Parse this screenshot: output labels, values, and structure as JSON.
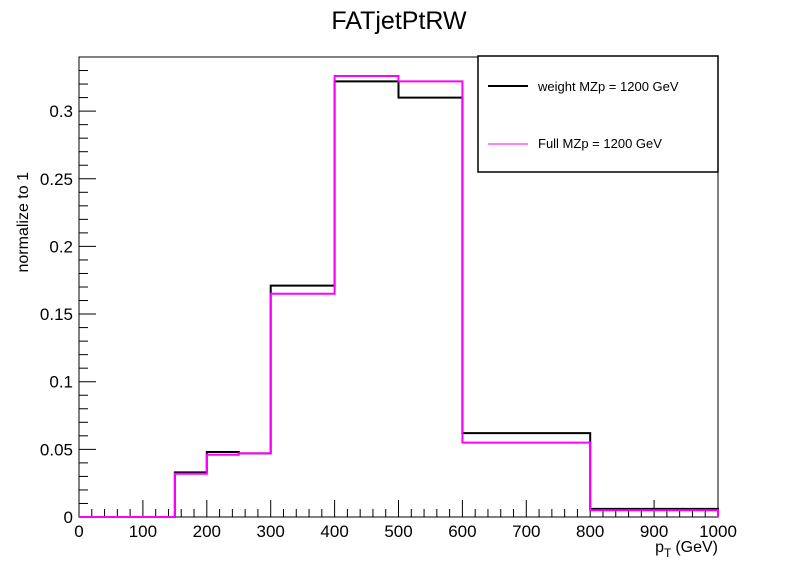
{
  "chart_data": {
    "type": "line",
    "title": "FATjetPtRW",
    "xlabel": "p_T (GeV)",
    "xlabel_main": "p",
    "xlabel_sub": "T",
    "xlabel_unit": "(GeV)",
    "ylabel": "normalize to 1",
    "xlim": [
      0,
      1000
    ],
    "ylim": [
      0,
      0.34
    ],
    "xticks": [
      "0",
      "100",
      "200",
      "300",
      "400",
      "500",
      "600",
      "700",
      "800",
      "900",
      "1000"
    ],
    "yticks": [
      "0",
      "0.05",
      "0.1",
      "0.15",
      "0.2",
      "0.25",
      "0.3"
    ],
    "bin_edges": [
      0,
      150,
      200,
      250,
      300,
      400,
      500,
      600,
      800,
      1000
    ],
    "grid": false,
    "legend_position": "top-right",
    "series": [
      {
        "name": "weight MZp = 1200 GeV",
        "color": "#000000",
        "values": [
          0,
          0.033,
          0.048,
          0.047,
          0.171,
          0.322,
          0.31,
          0.062,
          0.006
        ]
      },
      {
        "name": "Full MZp = 1200 GeV",
        "color": "#ff00ff",
        "values": [
          0,
          0.032,
          0.046,
          0.047,
          0.165,
          0.326,
          0.322,
          0.055,
          0.005
        ]
      }
    ]
  }
}
